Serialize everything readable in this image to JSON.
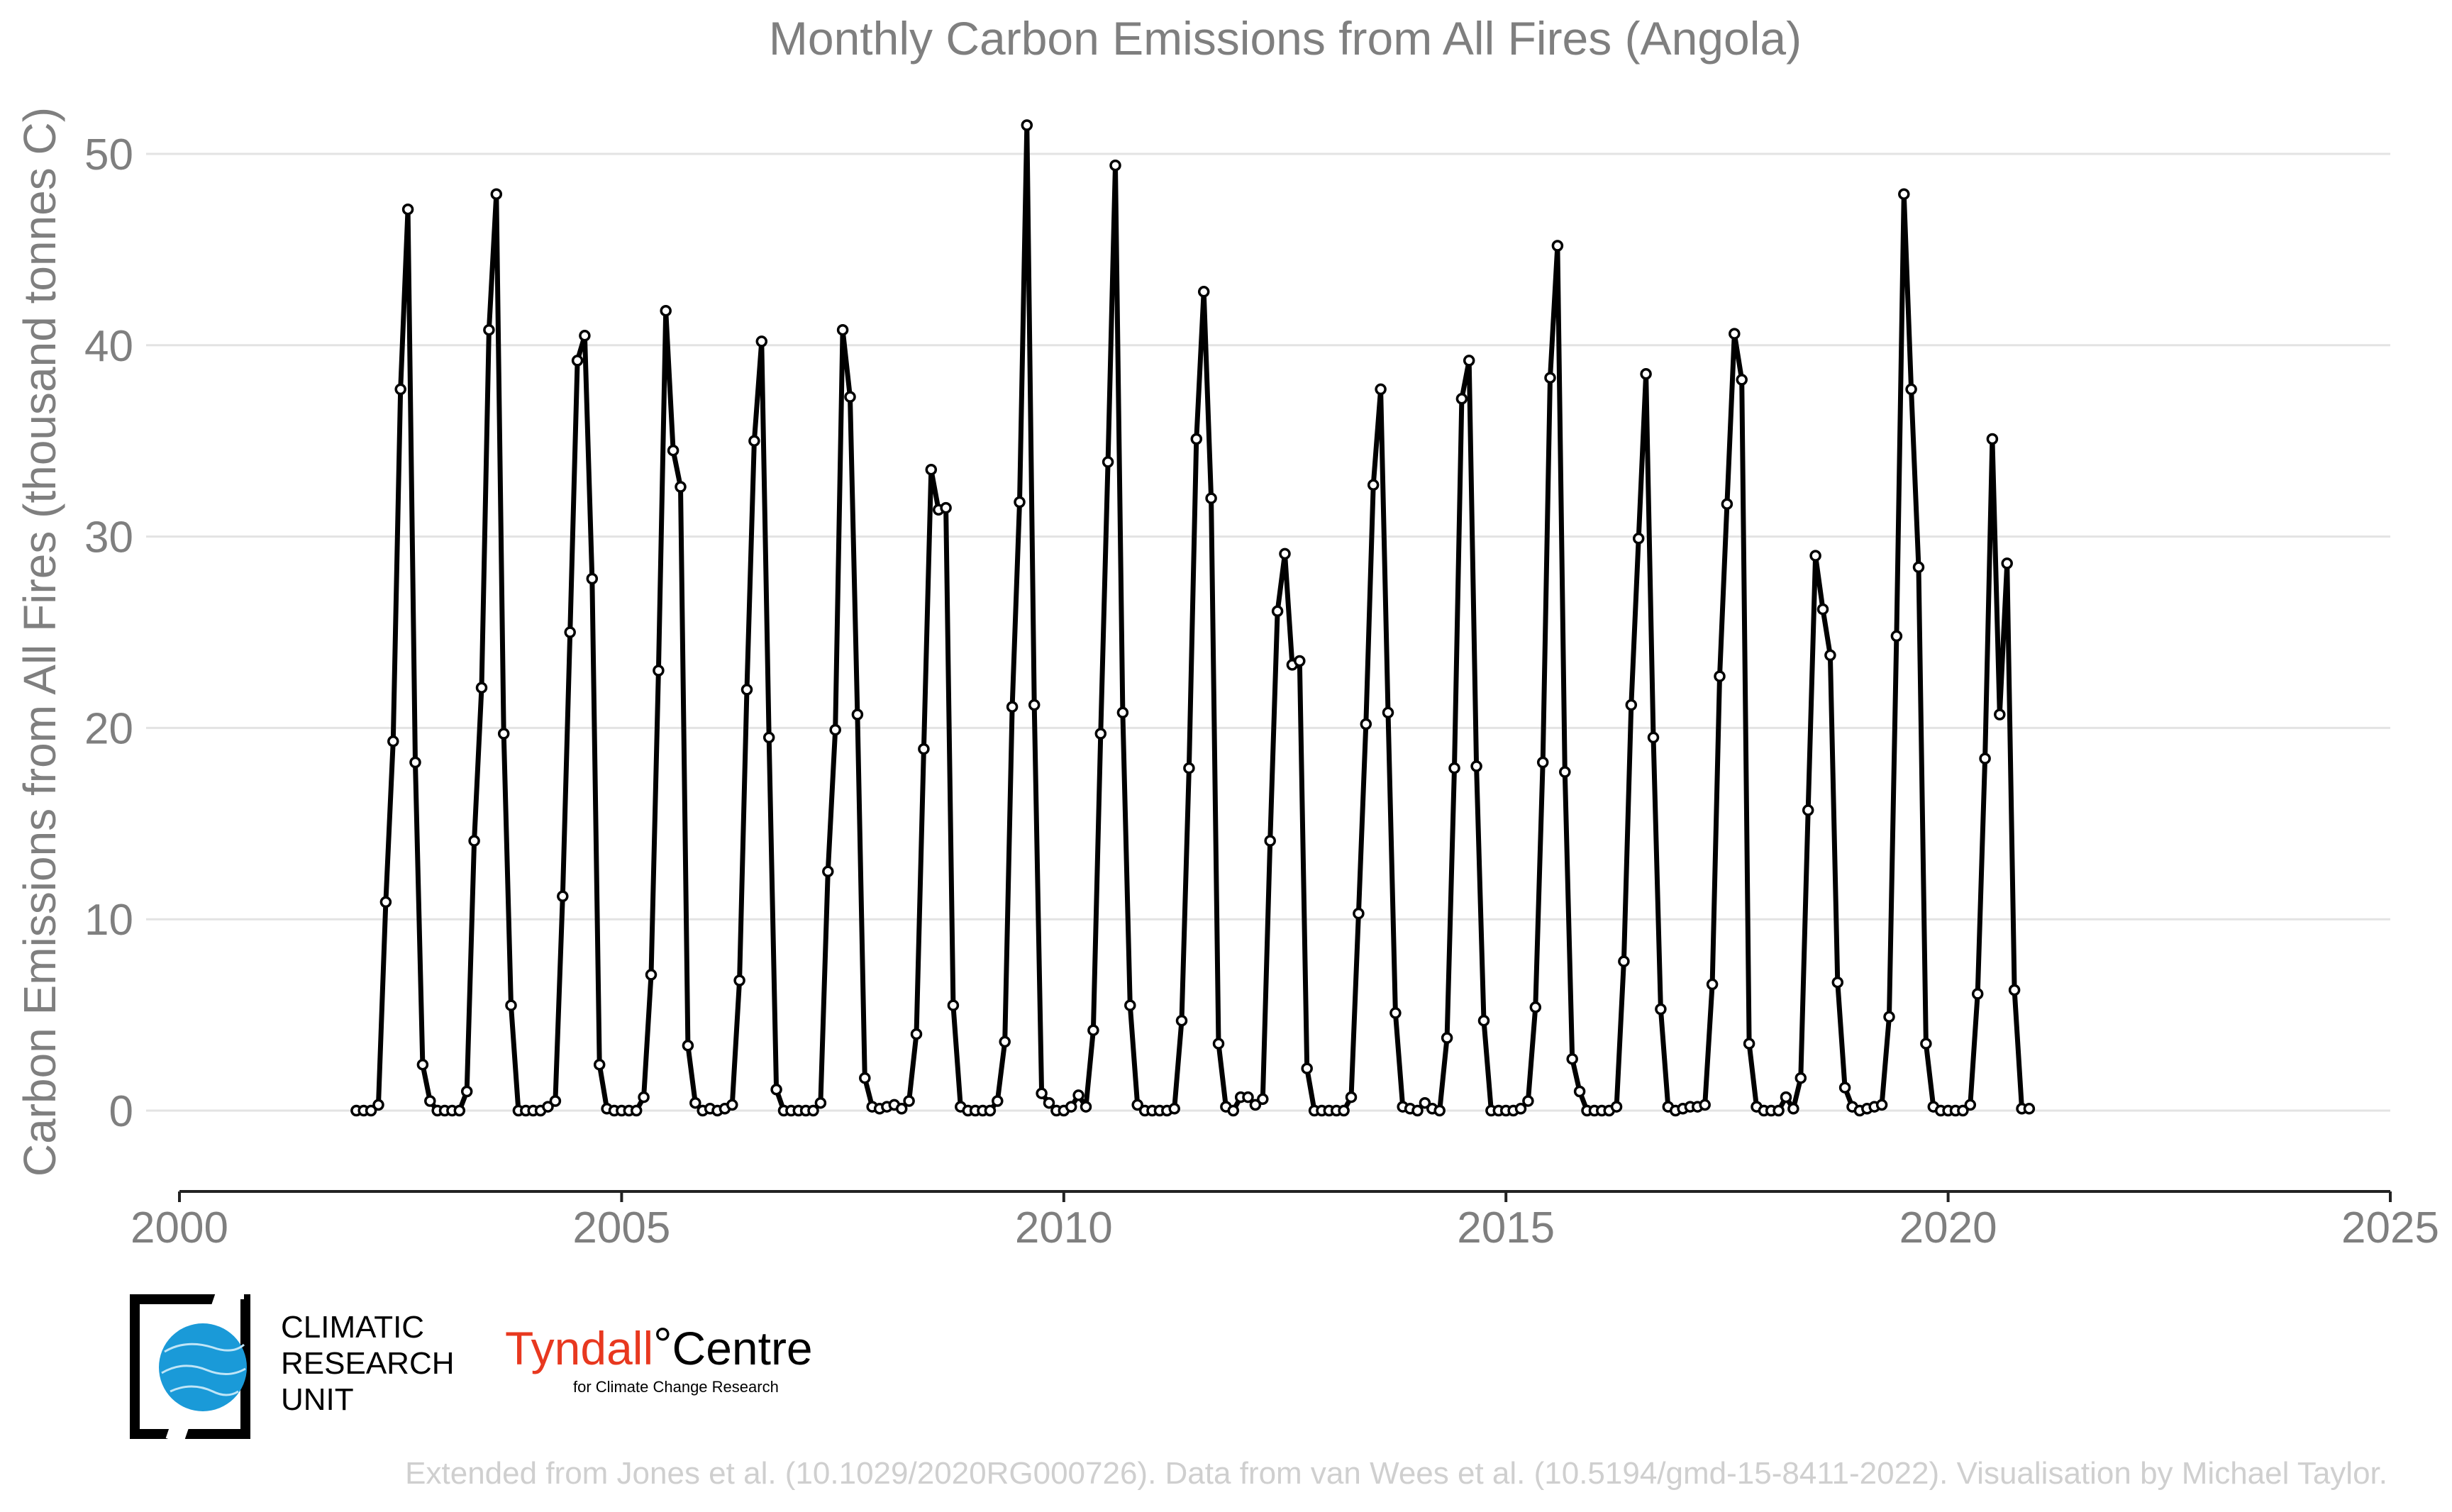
{
  "chart_data": {
    "type": "line",
    "title": "Monthly Carbon Emissions from All Fires (Angola)",
    "xlabel": "",
    "ylabel": "Carbon Emissions from All Fires (thousand tonnes C)",
    "xlim": [
      2000,
      2025
    ],
    "ylim": [
      0,
      52
    ],
    "grid": true,
    "legend": "none",
    "x_ticks": [
      2000,
      2005,
      2010,
      2015,
      2020,
      2025
    ],
    "y_ticks": [
      0,
      10,
      20,
      30,
      40,
      50
    ],
    "series": [
      {
        "start_year": 2002,
        "start_month": 1,
        "values": [
          0,
          0,
          0,
          0.3,
          10.9,
          19.3,
          37.7,
          47.1,
          18.2,
          2.4,
          0.5,
          0,
          0,
          0,
          0,
          1.0,
          14.1,
          22.1,
          40.8,
          47.9,
          19.7,
          5.5,
          0,
          0,
          0,
          0,
          0.2,
          0.5,
          11.2,
          25.0,
          39.2,
          40.5,
          27.8,
          2.4,
          0.1,
          0,
          0,
          0,
          0,
          0.7,
          7.1,
          23.0,
          41.8,
          34.5,
          32.6,
          3.4,
          0.4,
          0,
          0.1,
          0,
          0.1,
          0.3,
          6.8,
          22.0,
          35.0,
          40.2,
          19.5,
          1.1,
          0,
          0,
          0,
          0,
          0,
          0.4,
          12.5,
          19.9,
          40.8,
          37.3,
          20.7,
          1.7,
          0.2,
          0.1,
          0.2,
          0.3,
          0.1,
          0.5,
          4.0,
          18.9,
          33.5,
          31.4,
          31.5,
          5.5,
          0.2,
          0,
          0,
          0,
          0,
          0.5,
          3.6,
          21.1,
          31.8,
          51.5,
          21.2,
          0.9,
          0.4,
          0,
          0,
          0.2,
          0.8,
          0.2,
          4.2,
          19.7,
          33.9,
          49.4,
          20.8,
          5.5,
          0.3,
          0,
          0,
          0,
          0,
          0.1,
          4.7,
          17.9,
          35.1,
          42.8,
          32.0,
          3.5,
          0.2,
          0,
          0.7,
          0.7,
          0.3,
          0.6,
          14.1,
          26.1,
          29.1,
          23.3,
          23.5,
          2.2,
          0,
          0,
          0,
          0,
          0,
          0.7,
          10.3,
          20.2,
          32.7,
          37.7,
          20.8,
          5.1,
          0.2,
          0.1,
          0,
          0.4,
          0.1,
          0,
          3.8,
          17.9,
          37.2,
          39.2,
          18.0,
          4.7,
          0,
          0,
          0,
          0,
          0.1,
          0.5,
          5.4,
          18.2,
          38.3,
          45.2,
          17.7,
          2.7,
          1.0,
          0,
          0,
          0,
          0,
          0.2,
          7.8,
          21.2,
          29.9,
          38.5,
          19.5,
          5.3,
          0.2,
          0,
          0.1,
          0.2,
          0.2,
          0.3,
          6.6,
          22.7,
          31.7,
          40.6,
          38.2,
          3.5,
          0.2,
          0,
          0,
          0,
          0.7,
          0.1,
          1.7,
          15.7,
          29.0,
          26.2,
          23.8,
          6.7,
          1.2,
          0.2,
          0,
          0.1,
          0.2,
          0.3,
          4.9,
          24.8,
          47.9,
          37.7,
          28.4,
          3.5,
          0.2,
          0,
          0,
          0,
          0,
          0.3,
          6.1,
          18.4,
          35.1,
          20.7,
          28.6,
          6.3,
          0.1,
          0.1
        ]
      }
    ]
  },
  "logos": {
    "cru_lines": [
      "CLIMATIC",
      "RESEARCH",
      "UNIT"
    ],
    "tyndall_name": "Tyndall",
    "tyndall_degree": "°",
    "tyndall_centre": "Centre",
    "tyndall_subtitle": "for Climate Change Research"
  },
  "credit": "Extended from Jones et al. (10.1029/2020RG000726). Data from van Wees et al. (10.5194/gmd-15-8411-2022). Visualisation by Michael Taylor.",
  "colors": {
    "line": "#000000",
    "marker_fill": "#ffffff",
    "tyndall_red": "#e8381f",
    "cru_blue": "#1a9ad8"
  }
}
